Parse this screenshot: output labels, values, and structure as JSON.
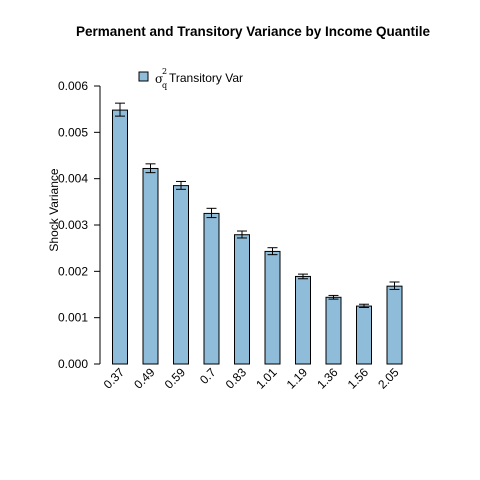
{
  "chart_data": {
    "type": "bar",
    "title": "Permanent and Transitory Variance by  Income Quantile",
    "ylabel": "Shock Variance",
    "xlabel": "",
    "ylim": [
      0,
      0.006
    ],
    "yticks": [
      "0.000",
      "0.001",
      "0.002",
      "0.003",
      "0.004",
      "0.005",
      "0.006"
    ],
    "categories": [
      "0.37",
      "0.49",
      "0.59",
      "0.7",
      "0.83",
      "1.01",
      "1.19",
      "1.36",
      "1.56",
      "2.05"
    ],
    "series": [
      {
        "legend_symbol": "σ",
        "legend_sup": "2",
        "legend_sub": "q",
        "legend_text": "Transitory Var",
        "values": [
          0.00548,
          0.00422,
          0.00385,
          0.00325,
          0.00279,
          0.00243,
          0.00189,
          0.00144,
          0.00125,
          0.00168
        ],
        "err_low": [
          0.00535,
          0.00413,
          0.00377,
          0.00316,
          0.00272,
          0.00236,
          0.00184,
          0.0014,
          0.00122,
          0.00161
        ],
        "err_high": [
          0.00563,
          0.00432,
          0.00394,
          0.00336,
          0.00287,
          0.00251,
          0.00194,
          0.00148,
          0.00129,
          0.00177
        ],
        "color": "#8fbcd9"
      }
    ],
    "grid": false,
    "legend_position": "top-left"
  }
}
